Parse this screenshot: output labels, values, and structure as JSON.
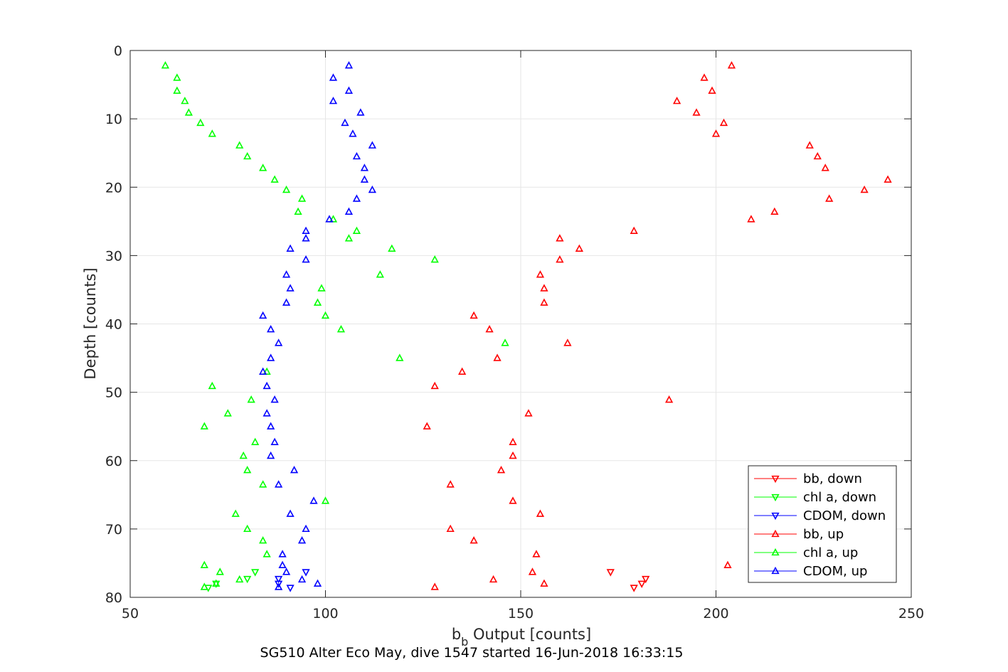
{
  "chart_data": {
    "type": "scatter",
    "xlabel": "b",
    "xlabel_subscript": "b",
    "xlabel_rest": " Output [counts]",
    "ylabel": "Depth [counts]",
    "caption": "SG510 Alter Eco May, dive 1547 started 16-Jun-2018 16:33:15",
    "xlim": [
      50,
      250
    ],
    "ylim": [
      0,
      80
    ],
    "y_reversed": true,
    "xticks": [
      50,
      100,
      150,
      200,
      250
    ],
    "yticks": [
      0,
      10,
      20,
      30,
      40,
      50,
      60,
      70,
      80
    ],
    "grid": true,
    "legend_position": "bottom-right",
    "series": [
      {
        "name": "bb, down",
        "color": "#ff0000",
        "marker": "triangle-down",
        "points": [
          [
            173,
            76.3
          ],
          [
            182,
            77.3
          ],
          [
            181,
            78.0
          ],
          [
            179,
            78.6
          ]
        ]
      },
      {
        "name": "chl a, down",
        "color": "#00ff00",
        "marker": "triangle-down",
        "points": [
          [
            82,
            76.3
          ],
          [
            80,
            77.3
          ],
          [
            72,
            78.0
          ],
          [
            70,
            78.6
          ]
        ]
      },
      {
        "name": "CDOM, down",
        "color": "#0000ff",
        "marker": "triangle-down",
        "points": [
          [
            95,
            76.3
          ],
          [
            88,
            77.3
          ],
          [
            88,
            78.0
          ],
          [
            91,
            78.6
          ]
        ]
      },
      {
        "name": "bb, up",
        "color": "#ff0000",
        "marker": "triangle-up",
        "points": [
          [
            204,
            2.2
          ],
          [
            197,
            4.0
          ],
          [
            199,
            5.9
          ],
          [
            190,
            7.4
          ],
          [
            195,
            9.1
          ],
          [
            202,
            10.6
          ],
          [
            200,
            12.2
          ],
          [
            224,
            13.9
          ],
          [
            226,
            15.5
          ],
          [
            228,
            17.2
          ],
          [
            244,
            18.9
          ],
          [
            238,
            20.4
          ],
          [
            229,
            21.7
          ],
          [
            215,
            23.6
          ],
          [
            209,
            24.7
          ],
          [
            179,
            26.4
          ],
          [
            160,
            27.5
          ],
          [
            165,
            29.0
          ],
          [
            160,
            30.6
          ],
          [
            155,
            32.8
          ],
          [
            156,
            34.8
          ],
          [
            156,
            36.9
          ],
          [
            138,
            38.8
          ],
          [
            142,
            40.8
          ],
          [
            162,
            42.8
          ],
          [
            144,
            45.0
          ],
          [
            135,
            47.0
          ],
          [
            128,
            49.1
          ],
          [
            188,
            51.1
          ],
          [
            152,
            53.1
          ],
          [
            126,
            55.0
          ],
          [
            148,
            57.3
          ],
          [
            148,
            59.3
          ],
          [
            145,
            61.4
          ],
          [
            132,
            63.5
          ],
          [
            148,
            65.9
          ],
          [
            155,
            67.8
          ],
          [
            132,
            70.0
          ],
          [
            138,
            71.7
          ],
          [
            154,
            73.7
          ],
          [
            203,
            75.3
          ],
          [
            153,
            76.3
          ],
          [
            143,
            77.4
          ],
          [
            156,
            78.0
          ],
          [
            128,
            78.5
          ]
        ]
      },
      {
        "name": "chl a, up",
        "color": "#00ff00",
        "marker": "triangle-up",
        "points": [
          [
            59,
            2.2
          ],
          [
            62,
            4.0
          ],
          [
            62,
            5.9
          ],
          [
            64,
            7.4
          ],
          [
            65,
            9.1
          ],
          [
            68,
            10.6
          ],
          [
            71,
            12.2
          ],
          [
            78,
            13.9
          ],
          [
            80,
            15.5
          ],
          [
            84,
            17.2
          ],
          [
            87,
            18.9
          ],
          [
            90,
            20.4
          ],
          [
            94,
            21.7
          ],
          [
            93,
            23.6
          ],
          [
            102,
            24.7
          ],
          [
            108,
            26.4
          ],
          [
            106,
            27.5
          ],
          [
            117,
            29.0
          ],
          [
            128,
            30.6
          ],
          [
            114,
            32.8
          ],
          [
            99,
            34.8
          ],
          [
            98,
            36.9
          ],
          [
            100,
            38.8
          ],
          [
            104,
            40.8
          ],
          [
            146,
            42.8
          ],
          [
            119,
            45.0
          ],
          [
            85,
            47.0
          ],
          [
            71,
            49.1
          ],
          [
            81,
            51.1
          ],
          [
            75,
            53.1
          ],
          [
            69,
            55.0
          ],
          [
            82,
            57.3
          ],
          [
            79,
            59.3
          ],
          [
            80,
            61.4
          ],
          [
            84,
            63.5
          ],
          [
            100,
            65.9
          ],
          [
            77,
            67.8
          ],
          [
            80,
            70.0
          ],
          [
            84,
            71.7
          ],
          [
            85,
            73.7
          ],
          [
            69,
            75.3
          ],
          [
            73,
            76.3
          ],
          [
            78,
            77.4
          ],
          [
            72,
            78.0
          ],
          [
            69,
            78.5
          ]
        ]
      },
      {
        "name": "CDOM, up",
        "color": "#0000ff",
        "marker": "triangle-up",
        "points": [
          [
            106,
            2.2
          ],
          [
            102,
            4.0
          ],
          [
            106,
            5.9
          ],
          [
            102,
            7.4
          ],
          [
            109,
            9.1
          ],
          [
            105,
            10.6
          ],
          [
            107,
            12.2
          ],
          [
            112,
            13.9
          ],
          [
            108,
            15.5
          ],
          [
            110,
            17.2
          ],
          [
            110,
            18.9
          ],
          [
            112,
            20.4
          ],
          [
            108,
            21.7
          ],
          [
            106,
            23.6
          ],
          [
            101,
            24.7
          ],
          [
            95,
            26.4
          ],
          [
            95,
            27.5
          ],
          [
            91,
            29.0
          ],
          [
            95,
            30.6
          ],
          [
            90,
            32.8
          ],
          [
            91,
            34.8
          ],
          [
            90,
            36.9
          ],
          [
            84,
            38.8
          ],
          [
            86,
            40.8
          ],
          [
            88,
            42.8
          ],
          [
            86,
            45.0
          ],
          [
            84,
            47.0
          ],
          [
            85,
            49.1
          ],
          [
            87,
            51.1
          ],
          [
            85,
            53.1
          ],
          [
            86,
            55.0
          ],
          [
            87,
            57.3
          ],
          [
            86,
            59.3
          ],
          [
            92,
            61.4
          ],
          [
            88,
            63.5
          ],
          [
            97,
            65.9
          ],
          [
            91,
            67.8
          ],
          [
            95,
            70.0
          ],
          [
            94,
            71.7
          ],
          [
            89,
            73.7
          ],
          [
            89,
            75.3
          ],
          [
            90,
            76.3
          ],
          [
            94,
            77.4
          ],
          [
            98,
            78.0
          ],
          [
            88,
            78.5
          ]
        ]
      }
    ]
  }
}
